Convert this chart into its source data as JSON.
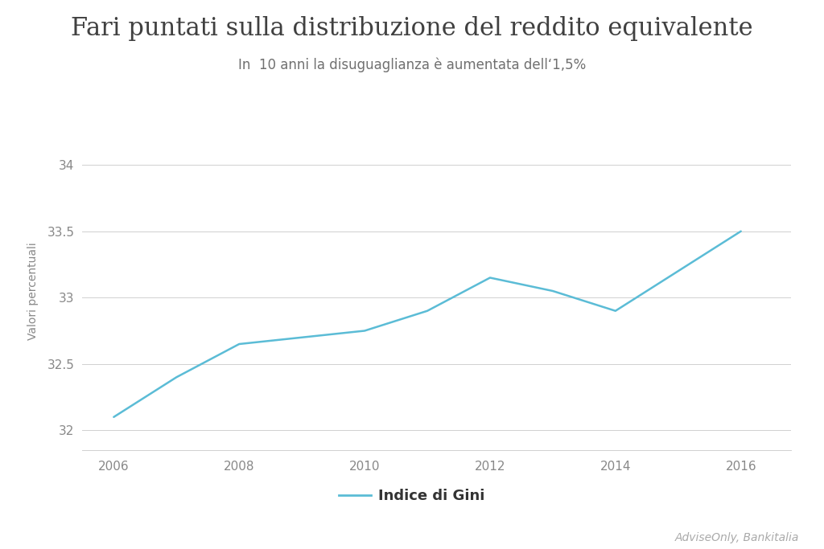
{
  "title": "Fari puntati sulla distribuzione del reddito equivalente",
  "subtitle": "In  10 anni la disuguaglianza è aumentata dell‘1,5%",
  "ylabel": "Valori percentuali",
  "legend_label": "Indice di Gini",
  "source": "AdviseOnly, Bankitalia",
  "years": [
    2006,
    2007,
    2008,
    2009,
    2010,
    2011,
    2012,
    2013,
    2014,
    2015,
    2016
  ],
  "values": [
    32.1,
    32.4,
    32.65,
    32.7,
    32.75,
    32.9,
    33.15,
    33.05,
    32.9,
    33.2,
    33.5
  ],
  "line_color": "#5bbcd6",
  "background_color": "#ffffff",
  "grid_color": "#d0d0d0",
  "title_color": "#404040",
  "subtitle_color": "#707070",
  "tick_color": "#888888",
  "ylabel_color": "#888888",
  "source_color": "#aaaaaa",
  "legend_color": "#333333",
  "title_fontsize": 22,
  "subtitle_fontsize": 12,
  "ylabel_fontsize": 10,
  "legend_fontsize": 13,
  "source_fontsize": 10,
  "tick_fontsize": 11,
  "ylim": [
    31.85,
    34.25
  ],
  "yticks": [
    32.0,
    32.5,
    33.0,
    33.5,
    34.0
  ],
  "xticks": [
    2006,
    2008,
    2010,
    2012,
    2014,
    2016
  ],
  "xlim": [
    2005.5,
    2016.8
  ]
}
